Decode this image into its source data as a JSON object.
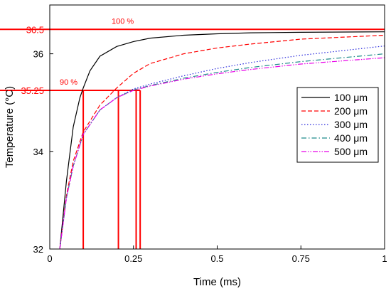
{
  "chart_data": {
    "type": "line",
    "xlabel": "Time (ms)",
    "ylabel": "Temperature (°C)",
    "xlim": [
      0,
      1
    ],
    "ylim": [
      32,
      37
    ],
    "xticks": [
      0,
      0.25,
      0.5,
      0.75,
      1
    ],
    "xtick_labels": [
      "0",
      "0.25",
      "0.5",
      "0.75",
      "1"
    ],
    "yticks": [
      32,
      34,
      36
    ],
    "ytick_labels": [
      "32",
      "34",
      "36"
    ],
    "grid": false,
    "legend_position": "right",
    "series": [
      {
        "name": "100 μm",
        "color": "#000000",
        "dash": "solid",
        "x": [
          0.03,
          0.05,
          0.07,
          0.09,
          0.1,
          0.12,
          0.15,
          0.2,
          0.25,
          0.3,
          0.4,
          0.5,
          0.6,
          0.75,
          1.0
        ],
        "y": [
          32.0,
          33.4,
          34.5,
          35.1,
          35.3,
          35.65,
          35.95,
          36.15,
          36.25,
          36.32,
          36.38,
          36.41,
          36.43,
          36.44,
          36.45
        ]
      },
      {
        "name": "200 μm",
        "color": "#ff0000",
        "dash": "dashed",
        "x": [
          0.03,
          0.05,
          0.07,
          0.1,
          0.15,
          0.2,
          0.25,
          0.3,
          0.4,
          0.5,
          0.6,
          0.75,
          1.0
        ],
        "y": [
          32.0,
          33.1,
          33.8,
          34.4,
          34.95,
          35.3,
          35.6,
          35.8,
          36.0,
          36.12,
          36.2,
          36.3,
          36.38
        ]
      },
      {
        "name": "300 μm",
        "color": "#2a2adc",
        "dash": "dotted",
        "x": [
          0.03,
          0.05,
          0.07,
          0.1,
          0.15,
          0.2,
          0.25,
          0.3,
          0.4,
          0.5,
          0.6,
          0.75,
          1.0
        ],
        "y": [
          32.0,
          33.05,
          33.7,
          34.35,
          34.85,
          35.1,
          35.28,
          35.38,
          35.55,
          35.7,
          35.82,
          35.97,
          36.16
        ]
      },
      {
        "name": "400 μm",
        "color": "#1f8a8a",
        "dash": "dashdot",
        "x": [
          0.03,
          0.05,
          0.07,
          0.1,
          0.15,
          0.2,
          0.25,
          0.3,
          0.4,
          0.5,
          0.6,
          0.75,
          1.0
        ],
        "y": [
          32.0,
          33.05,
          33.7,
          34.35,
          34.85,
          35.1,
          35.26,
          35.35,
          35.5,
          35.62,
          35.72,
          35.84,
          36.0
        ]
      },
      {
        "name": "500 μm",
        "color": "#e800e8",
        "dash": "dashdotdot",
        "x": [
          0.03,
          0.05,
          0.07,
          0.1,
          0.15,
          0.2,
          0.25,
          0.3,
          0.4,
          0.5,
          0.6,
          0.75,
          1.0
        ],
        "y": [
          32.0,
          33.05,
          33.7,
          34.35,
          34.85,
          35.1,
          35.25,
          35.34,
          35.48,
          35.59,
          35.68,
          35.79,
          35.92
        ]
      }
    ],
    "reference_lines": {
      "horizontal": [
        {
          "y": 36.5,
          "label": "36.5",
          "annotation": "100 %"
        },
        {
          "y": 35.25,
          "label": "35.25",
          "annotation": "90 %",
          "x_end": 0.27
        }
      ],
      "vertical_x": [
        0.1,
        0.205,
        0.258,
        0.27
      ],
      "color": "#ff0000"
    }
  }
}
